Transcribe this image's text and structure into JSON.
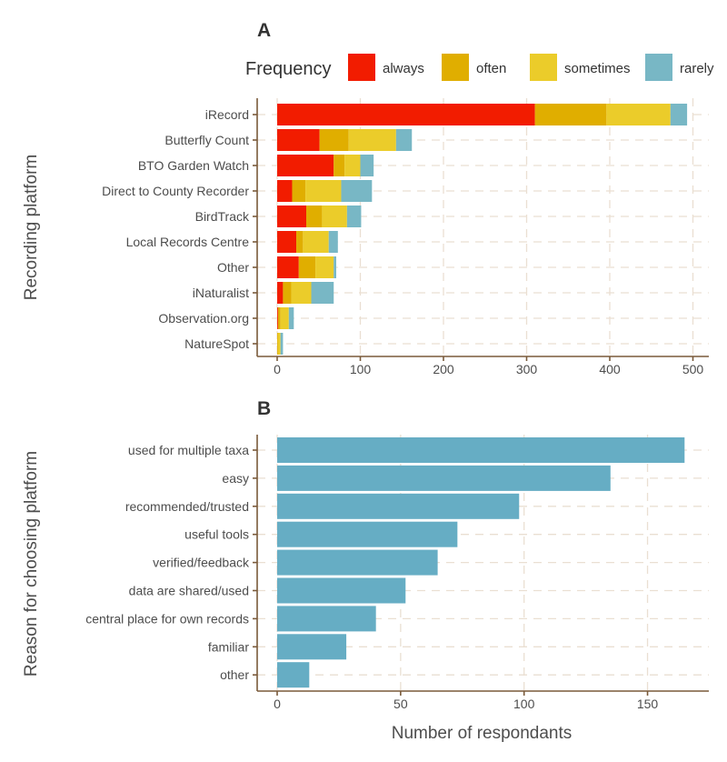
{
  "chart_data": [
    {
      "type": "bar",
      "orientation": "horizontal",
      "stacked": true,
      "panel_label": "A",
      "ylabel": "Recording platform",
      "xlabel": "",
      "xlim": [
        0,
        500
      ],
      "xticks": [
        0,
        100,
        200,
        300,
        400,
        500
      ],
      "legend_title": "Frequency",
      "legend_placement": "top",
      "categories": [
        "iRecord",
        "Butterfly Count",
        "BTO Garden Watch",
        "Direct to County Recorder",
        "BirdTrack",
        "Local Records Centre",
        "Other",
        "iNaturalist",
        "Observation.org",
        "NatureSpot"
      ],
      "series": [
        {
          "name": "always",
          "color": "#f21c00",
          "values": [
            310,
            51,
            68,
            18,
            35,
            23,
            26,
            7,
            1,
            0
          ]
        },
        {
          "name": "often",
          "color": "#e0ae00",
          "values": [
            86,
            35,
            13,
            16,
            19,
            8,
            20,
            10,
            3,
            1
          ]
        },
        {
          "name": "sometimes",
          "color": "#ebcc2a",
          "values": [
            77,
            57,
            19,
            43,
            30,
            31,
            22,
            24,
            10,
            3
          ]
        },
        {
          "name": "rarely",
          "color": "#78b7c5",
          "values": [
            20,
            19,
            16,
            37,
            17,
            11,
            3,
            27,
            6,
            3
          ]
        }
      ]
    },
    {
      "type": "bar",
      "orientation": "horizontal",
      "panel_label": "B",
      "ylabel": "Reason for choosing platform",
      "xlabel": "Number of respondants",
      "xlim": [
        0,
        170
      ],
      "xticks": [
        0,
        50,
        100,
        150
      ],
      "color": "#66adc4",
      "categories": [
        "used for multiple taxa",
        "easy",
        "recommended/trusted",
        "useful tools",
        "verified/feedback",
        "data are shared/used",
        "central place for own records",
        "familiar",
        "other"
      ],
      "values": [
        165,
        135,
        98,
        73,
        65,
        52,
        40,
        28,
        13
      ]
    }
  ]
}
